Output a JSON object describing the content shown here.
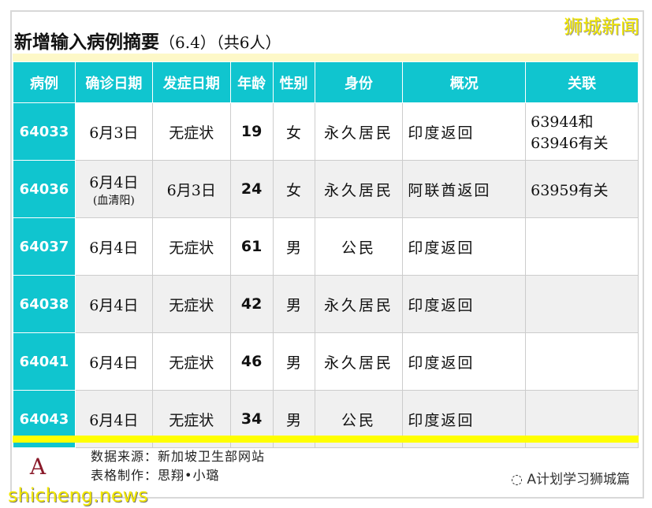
{
  "title": "新增输入病例摘要",
  "title_date": "（6.4）",
  "title_count": "（共6人）",
  "brand": "狮城新闻",
  "headers": [
    "病例",
    "确诊日期",
    "发症日期",
    "年龄",
    "性别",
    "身份",
    "概况",
    "关联"
  ],
  "rows": [
    {
      "id": "64033",
      "confirm": "6月3日",
      "confirm_note": "",
      "onset": "无症状",
      "age": "19",
      "sex": "女",
      "status": "永久居民",
      "summary": "印度返回",
      "link": "63944和",
      "link2": "63946有关"
    },
    {
      "id": "64036",
      "confirm": "6月4日",
      "confirm_note": "(血清阳)",
      "onset": "6月3日",
      "age": "24",
      "sex": "女",
      "status": "永久居民",
      "summary": "阿联酋返回",
      "link": "63959有关",
      "link2": ""
    },
    {
      "id": "64037",
      "confirm": "6月4日",
      "confirm_note": "",
      "onset": "无症状",
      "age": "61",
      "sex": "男",
      "status": "公民",
      "summary": "印度返回",
      "link": "",
      "link2": ""
    },
    {
      "id": "64038",
      "confirm": "6月4日",
      "confirm_note": "",
      "onset": "无症状",
      "age": "42",
      "sex": "男",
      "status": "永久居民",
      "summary": "印度返回",
      "link": "",
      "link2": ""
    },
    {
      "id": "64041",
      "confirm": "6月4日",
      "confirm_note": "",
      "onset": "无症状",
      "age": "46",
      "sex": "男",
      "status": "永久居民",
      "summary": "印度返回",
      "link": "",
      "link2": ""
    },
    {
      "id": "64043",
      "confirm": "6月4日",
      "confirm_note": "",
      "onset": "无症状",
      "age": "34",
      "sex": "男",
      "status": "公民",
      "summary": "印度返回",
      "link": "",
      "link2": ""
    }
  ],
  "footer": {
    "source": "数据来源：新加坡卫生部网站",
    "maker": "表格制作：思翔•小璐",
    "watermark": "shicheng.news",
    "wechat": "A计划学习狮城篇"
  },
  "colors": {
    "header": "#10c5cf",
    "accent_band": "#ffff00"
  }
}
